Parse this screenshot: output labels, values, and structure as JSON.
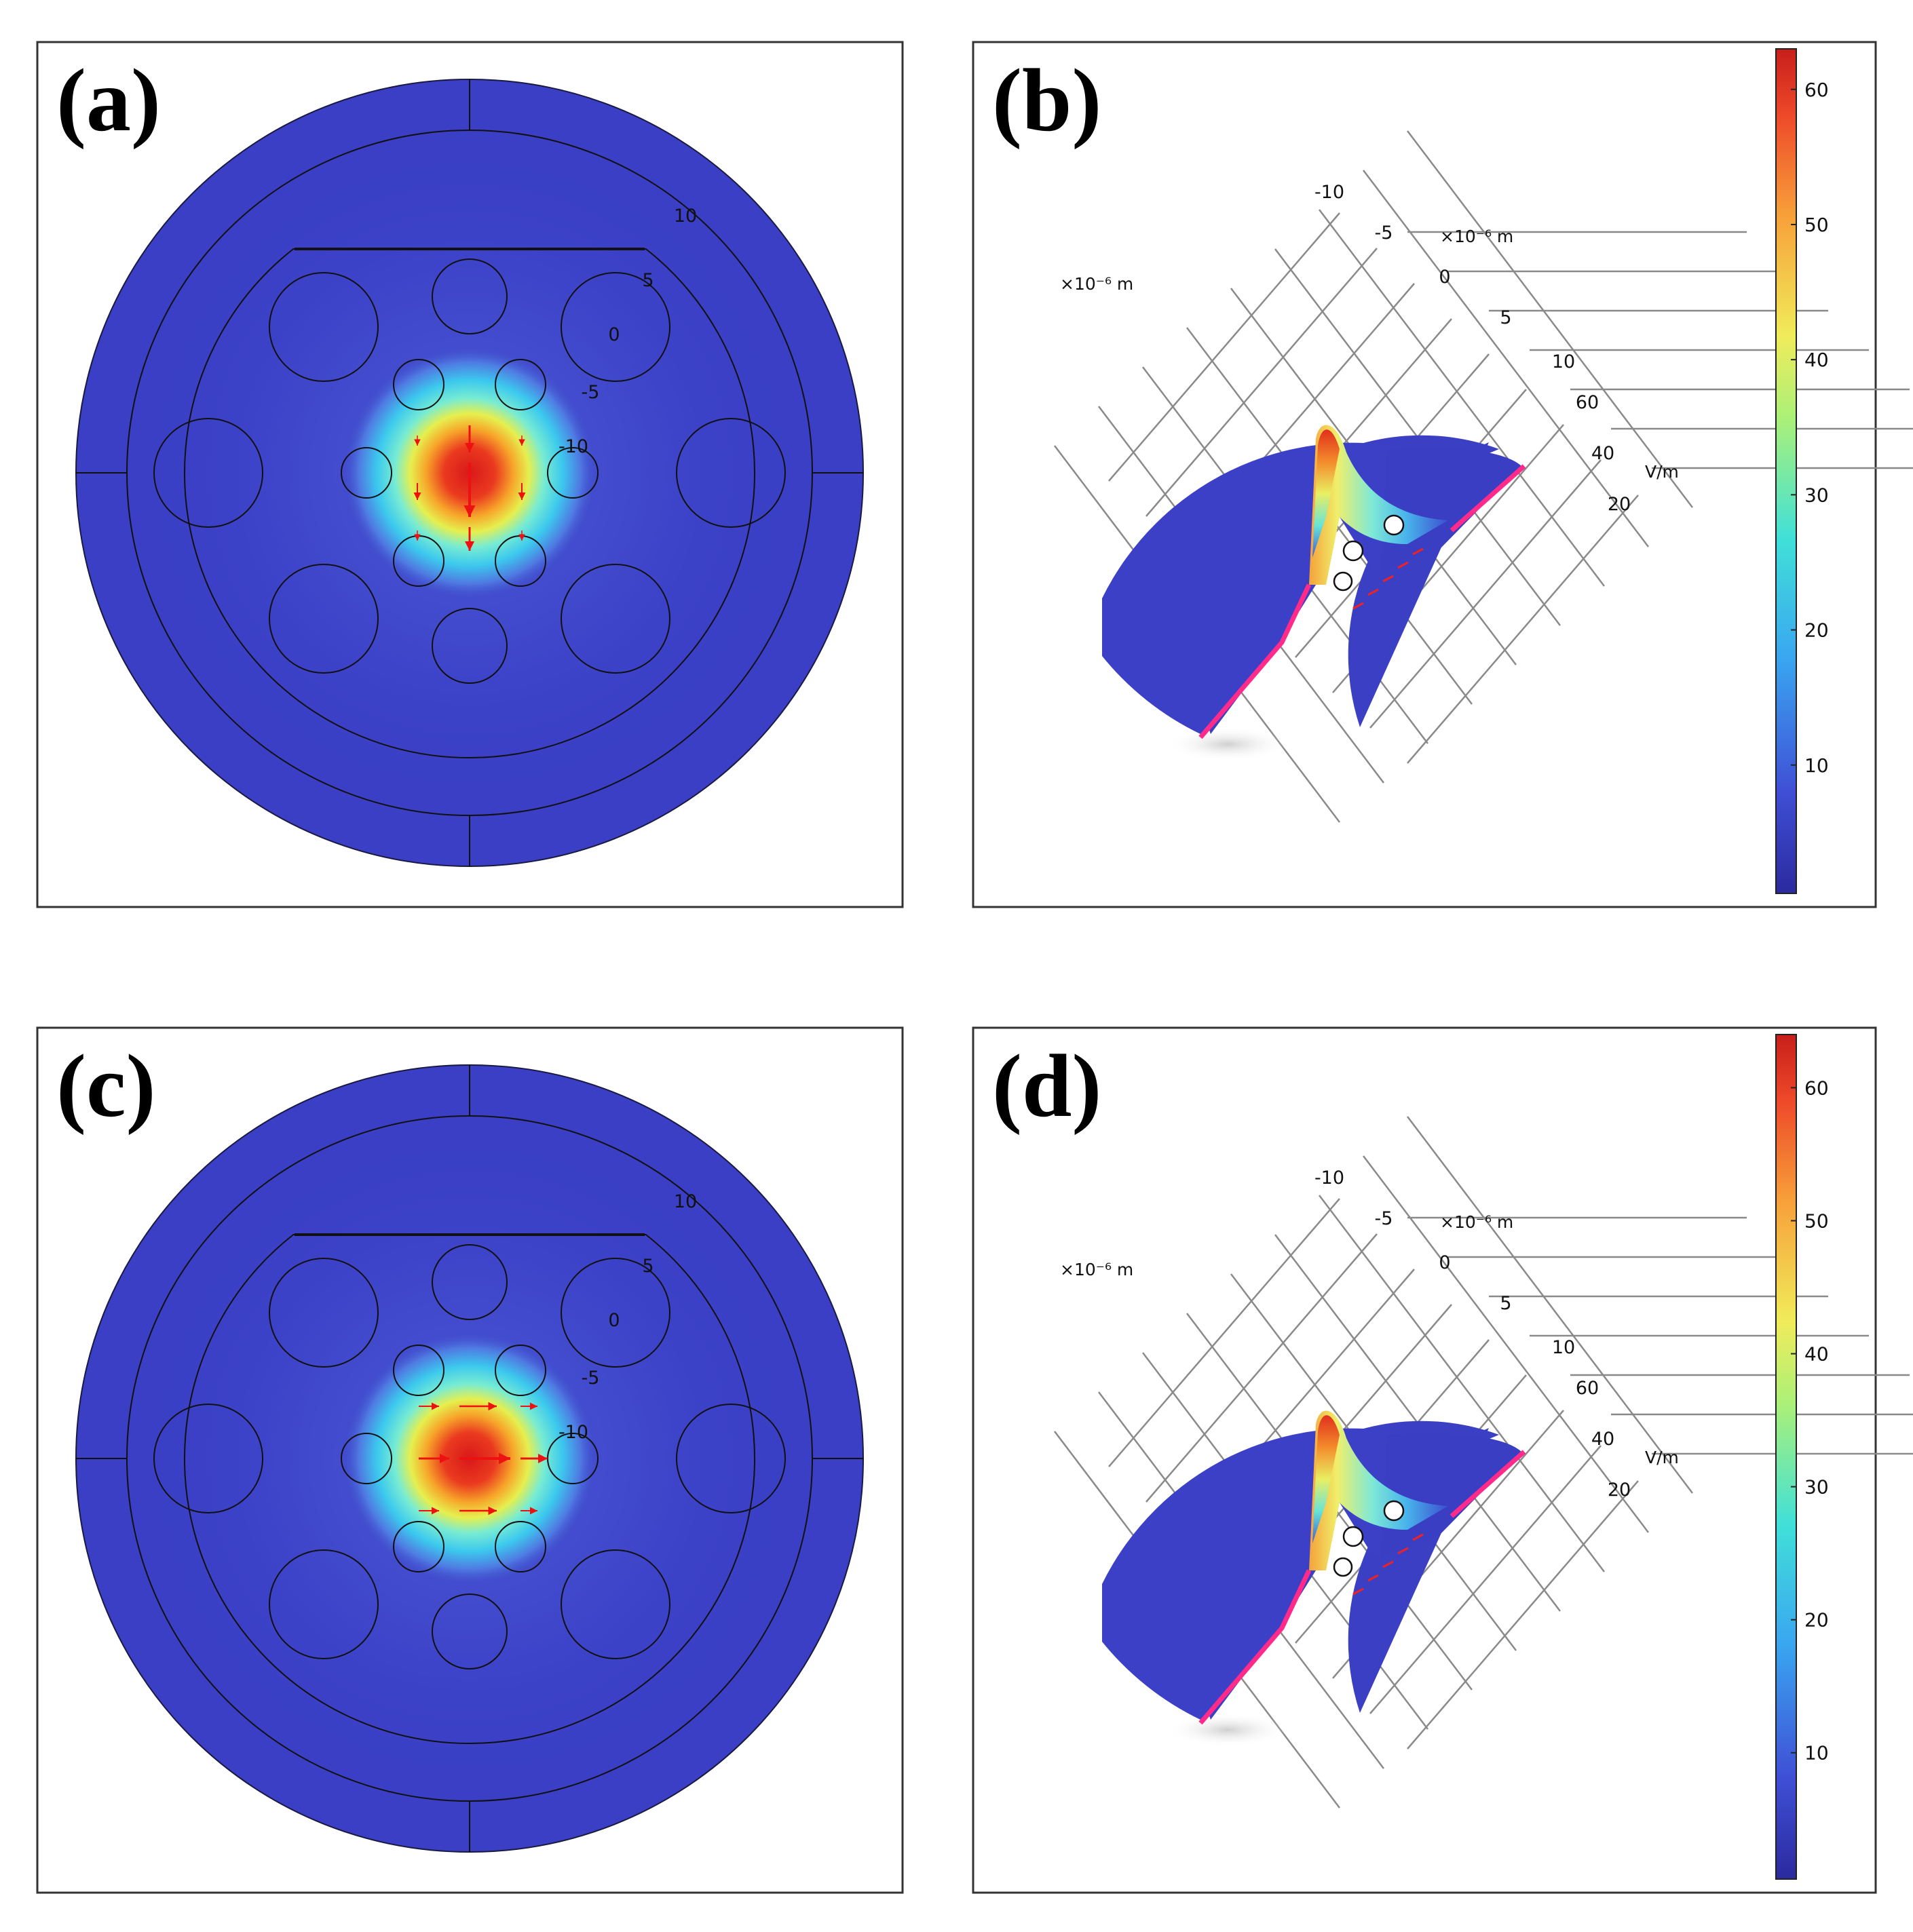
{
  "figure": {
    "panels": [
      {
        "id": "a",
        "label": "(a)",
        "type": "cross-section",
        "arrow_dir": "down"
      },
      {
        "id": "b",
        "label": "(b)",
        "type": "surface-3d"
      },
      {
        "id": "c",
        "label": "(c)",
        "type": "cross-section",
        "arrow_dir": "right"
      },
      {
        "id": "d",
        "label": "(d)",
        "type": "surface-3d"
      }
    ],
    "axis_3d": {
      "axis1_unit": "×10⁻⁶ m",
      "axis1_ticks": [
        "10",
        "5",
        "0",
        "-5",
        "-10"
      ],
      "axis2_unit": "×10⁻⁶ m",
      "axis2_ticks": [
        "-10",
        "-5",
        "0",
        "5",
        "10"
      ],
      "z_unit": "V/m",
      "z_ticks": [
        "60",
        "40",
        "20"
      ]
    },
    "colorbars": [
      {
        "panel": "b",
        "ticks": [
          "60",
          "50",
          "40",
          "30",
          "20",
          "10"
        ],
        "range": [
          0.5,
          63
        ]
      },
      {
        "panel": "d",
        "ticks": [
          "60",
          "50",
          "40",
          "30",
          "20",
          "10"
        ],
        "range": [
          0.5,
          64
        ]
      }
    ],
    "colors": {
      "background_field": "#3a3fc6",
      "hot": "#e0201a",
      "arrow": "#ee1111",
      "frame": "#333333"
    }
  }
}
